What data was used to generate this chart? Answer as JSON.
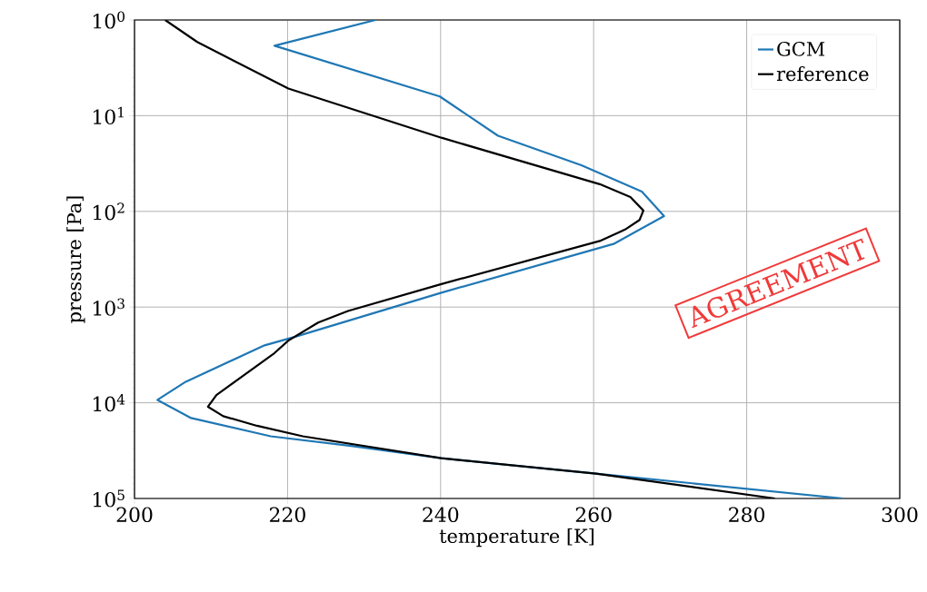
{
  "chart_data": {
    "type": "line",
    "xlabel": "temperature [K]",
    "ylabel": "pressure [Pa]",
    "xlim": [
      200,
      300
    ],
    "xticks": [
      200,
      220,
      240,
      260,
      280,
      300
    ],
    "ylim": [
      100000,
      1
    ],
    "log": "y",
    "yticks": [
      {
        "value": 1,
        "label": "10$^{0}$"
      },
      {
        "value": 10,
        "label": "10$^{1}$"
      },
      {
        "value": 100,
        "label": "10$^{2}$"
      },
      {
        "value": 1000,
        "label": "10$^{3}$"
      },
      {
        "value": 10000,
        "label": "10$^{4}$"
      },
      {
        "value": 100000,
        "label": "10$^{5}$"
      }
    ],
    "grid": true,
    "legend": "top right",
    "marker": "none",
    "line_style": "solid",
    "annotations": [
      "AGREEMENT"
    ],
    "series": [
      {
        "name": "GCM",
        "color": "#1f77b4",
        "x": [
          231.5,
          218.3,
          239.9,
          247.5,
          258.4,
          266.3,
          269.2,
          262.6,
          240.1,
          221.0,
          217.0,
          206.7,
          203.0,
          207.4,
          217.8,
          228.3,
          240.1,
          260.3,
          292.6
        ],
        "values": [
          1,
          1.86,
          6.3,
          16.2,
          33,
          62,
          112,
          219,
          708,
          2040,
          2510,
          6030,
          9330,
          14450,
          22400,
          28200,
          38000,
          55000,
          100000
        ]
      },
      {
        "name": "reference",
        "color": "#000000",
        "x": [
          204.0,
          208.2,
          220.1,
          240.1,
          260.8,
          264.8,
          266.5,
          266.0,
          264.1,
          260.8,
          240.1,
          227.9,
          224.0,
          220.1,
          218.3,
          210.7,
          209.6,
          211.6,
          216.0,
          222.0,
          240.1,
          260.3,
          283.7
        ],
        "values": [
          1,
          1.7,
          5.2,
          17,
          52,
          71,
          98,
          123,
          155,
          204,
          575,
          1100,
          1450,
          2240,
          3020,
          8300,
          11000,
          13800,
          17400,
          22400,
          38000,
          55000,
          100000
        ]
      }
    ]
  }
}
